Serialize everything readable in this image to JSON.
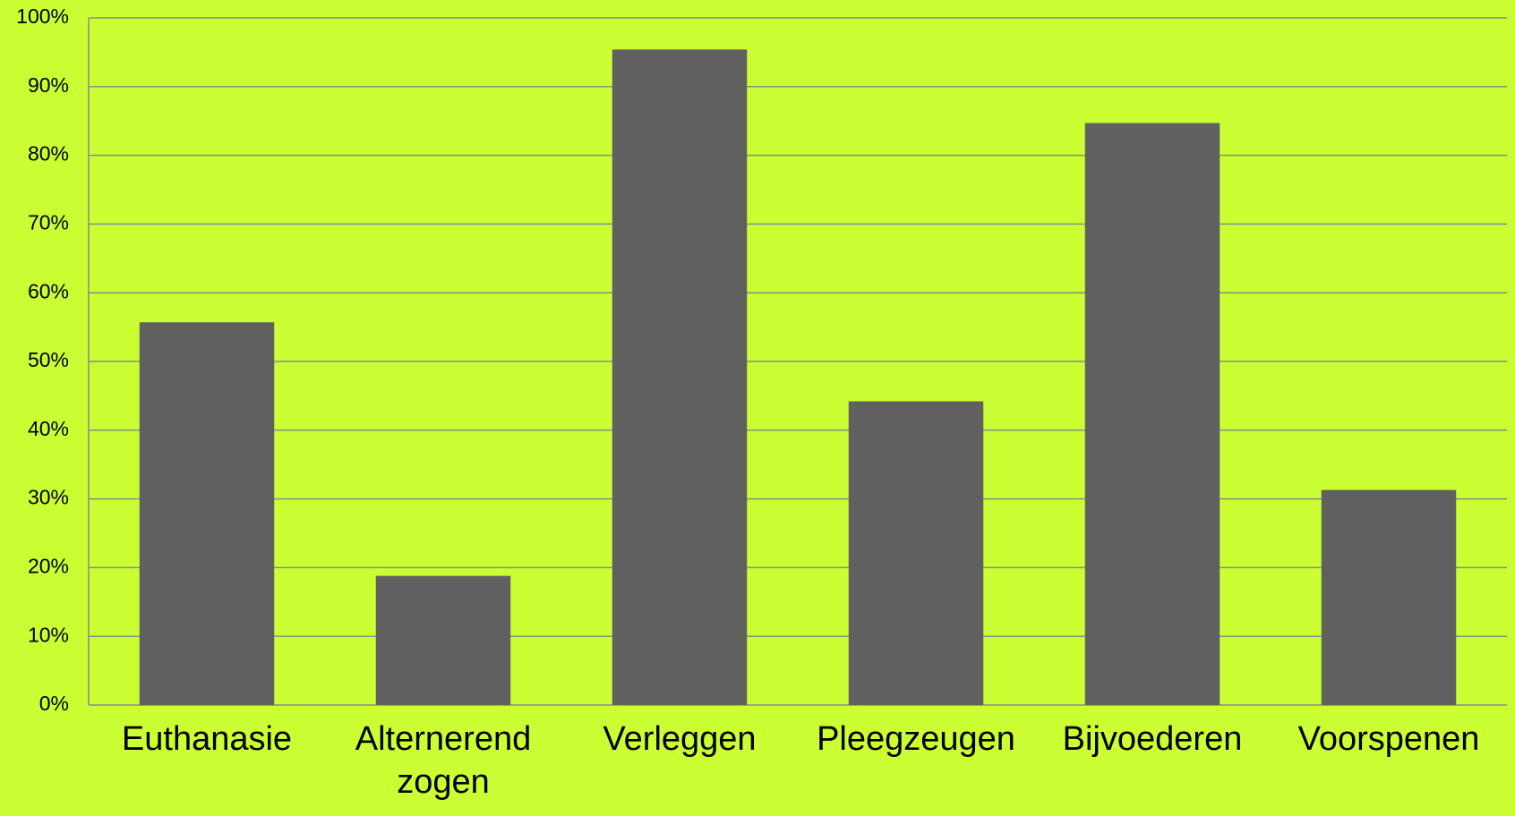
{
  "chart_data": {
    "type": "bar",
    "categories": [
      "Euthanasie",
      "Alternerend zogen",
      "Verleggen",
      "Pleegzeugen",
      "Bijvoederen",
      "Voorspenen"
    ],
    "values": [
      55.7,
      18.8,
      95.4,
      44.2,
      84.7,
      31.3
    ],
    "color": "#606060",
    "ylim": [
      0,
      100
    ],
    "yticks": [
      {
        "value": 0,
        "label": "0%"
      },
      {
        "value": 10,
        "label": "10%"
      },
      {
        "value": 20,
        "label": "20%"
      },
      {
        "value": 30,
        "label": "30%"
      },
      {
        "value": 40,
        "label": "40%"
      },
      {
        "value": 50,
        "label": "50%"
      },
      {
        "value": 60,
        "label": "60%"
      },
      {
        "value": 70,
        "label": "70%"
      },
      {
        "value": 80,
        "label": "80%"
      },
      {
        "value": 90,
        "label": "90%"
      },
      {
        "value": 100,
        "label": "100%"
      }
    ],
    "grid": true
  }
}
